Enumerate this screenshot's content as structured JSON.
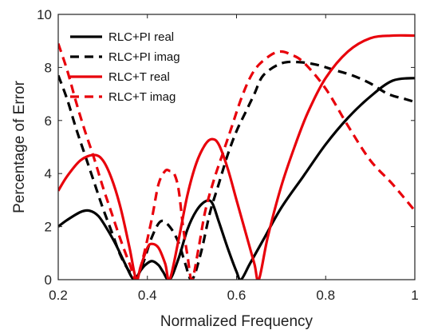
{
  "chart_data": {
    "type": "line",
    "xlabel": "Normalized Frequency",
    "ylabel": "Percentage of Error",
    "xlim": [
      0.2,
      1.0
    ],
    "ylim": [
      0,
      10
    ],
    "xticks": [
      0.2,
      0.4,
      0.6,
      0.8,
      1.0
    ],
    "xtick_labels": [
      "0.2",
      "0.4",
      "0.6",
      "0.8",
      "1"
    ],
    "yticks": [
      0,
      2,
      4,
      6,
      8,
      10
    ],
    "ytick_labels": [
      "0",
      "2",
      "4",
      "6",
      "8",
      "10"
    ],
    "grid": false,
    "legend_position": "top-left",
    "series": [
      {
        "name": "RLC+PI real",
        "color": "#000000",
        "dash": "solid",
        "x": [
          0.2,
          0.22,
          0.25,
          0.27,
          0.29,
          0.31,
          0.33,
          0.35,
          0.37,
          0.385,
          0.395,
          0.41,
          0.425,
          0.435,
          0.45,
          0.47,
          0.49,
          0.51,
          0.53,
          0.545,
          0.56,
          0.58,
          0.6,
          0.61,
          0.63,
          0.66,
          0.7,
          0.75,
          0.8,
          0.85,
          0.9,
          0.95,
          1.0
        ],
        "y": [
          2.0,
          2.25,
          2.55,
          2.6,
          2.4,
          1.9,
          1.3,
          0.6,
          0.0,
          0.35,
          0.55,
          0.7,
          0.55,
          0.3,
          0.0,
          0.8,
          1.9,
          2.6,
          2.95,
          2.9,
          2.2,
          1.2,
          0.3,
          0.0,
          0.6,
          1.5,
          2.7,
          3.9,
          5.1,
          6.1,
          6.9,
          7.5,
          7.6
        ]
      },
      {
        "name": "RLC+PI imag",
        "color": "#000000",
        "dash": "dashed",
        "x": [
          0.2,
          0.22,
          0.24,
          0.26,
          0.28,
          0.3,
          0.32,
          0.34,
          0.36,
          0.375,
          0.39,
          0.41,
          0.43,
          0.45,
          0.47,
          0.485,
          0.5,
          0.52,
          0.54,
          0.56,
          0.58,
          0.6,
          0.62,
          0.64,
          0.66,
          0.7,
          0.74,
          0.78,
          0.82,
          0.86,
          0.9,
          0.94,
          0.98,
          1.0
        ],
        "y": [
          7.7,
          6.8,
          5.7,
          4.7,
          3.7,
          2.7,
          1.8,
          0.9,
          0.3,
          0.1,
          0.6,
          1.6,
          2.2,
          2.0,
          1.4,
          0.6,
          0.0,
          1.0,
          2.5,
          3.6,
          4.7,
          5.6,
          6.3,
          7.0,
          7.7,
          8.15,
          8.2,
          8.1,
          7.9,
          7.7,
          7.4,
          7.0,
          6.8,
          6.7
        ]
      },
      {
        "name": "RLC+T real",
        "color": "#e8000b",
        "dash": "solid",
        "x": [
          0.2,
          0.22,
          0.25,
          0.28,
          0.3,
          0.32,
          0.34,
          0.36,
          0.375,
          0.385,
          0.4,
          0.41,
          0.425,
          0.44,
          0.45,
          0.47,
          0.49,
          0.51,
          0.53,
          0.545,
          0.56,
          0.58,
          0.6,
          0.62,
          0.64,
          0.65,
          0.67,
          0.7,
          0.73,
          0.76,
          0.8,
          0.85,
          0.9,
          0.95,
          1.0
        ],
        "y": [
          3.35,
          3.9,
          4.5,
          4.7,
          4.5,
          3.8,
          2.7,
          1.2,
          0.0,
          0.5,
          1.2,
          1.35,
          1.2,
          0.6,
          0.0,
          1.5,
          3.2,
          4.4,
          5.1,
          5.3,
          5.1,
          4.2,
          3.0,
          1.8,
          0.6,
          0.0,
          1.6,
          3.5,
          5.0,
          6.3,
          7.6,
          8.6,
          9.1,
          9.2,
          9.2
        ]
      },
      {
        "name": "RLC+T imag",
        "color": "#e8000b",
        "dash": "dashed",
        "x": [
          0.2,
          0.22,
          0.24,
          0.26,
          0.28,
          0.3,
          0.32,
          0.34,
          0.36,
          0.375,
          0.39,
          0.41,
          0.425,
          0.44,
          0.45,
          0.46,
          0.47,
          0.48,
          0.49,
          0.5,
          0.515,
          0.53,
          0.55,
          0.57,
          0.59,
          0.61,
          0.63,
          0.65,
          0.68,
          0.7,
          0.72,
          0.75,
          0.8,
          0.85,
          0.9,
          0.95,
          1.0
        ],
        "y": [
          8.9,
          7.9,
          6.7,
          5.6,
          4.6,
          3.5,
          2.5,
          1.5,
          0.6,
          0.0,
          0.8,
          2.3,
          3.6,
          4.1,
          4.1,
          4.0,
          3.4,
          2.0,
          0.9,
          0.0,
          1.2,
          2.6,
          3.8,
          4.8,
          5.8,
          6.8,
          7.6,
          8.1,
          8.5,
          8.6,
          8.5,
          8.2,
          7.2,
          5.8,
          4.5,
          3.6,
          2.6
        ]
      }
    ]
  }
}
